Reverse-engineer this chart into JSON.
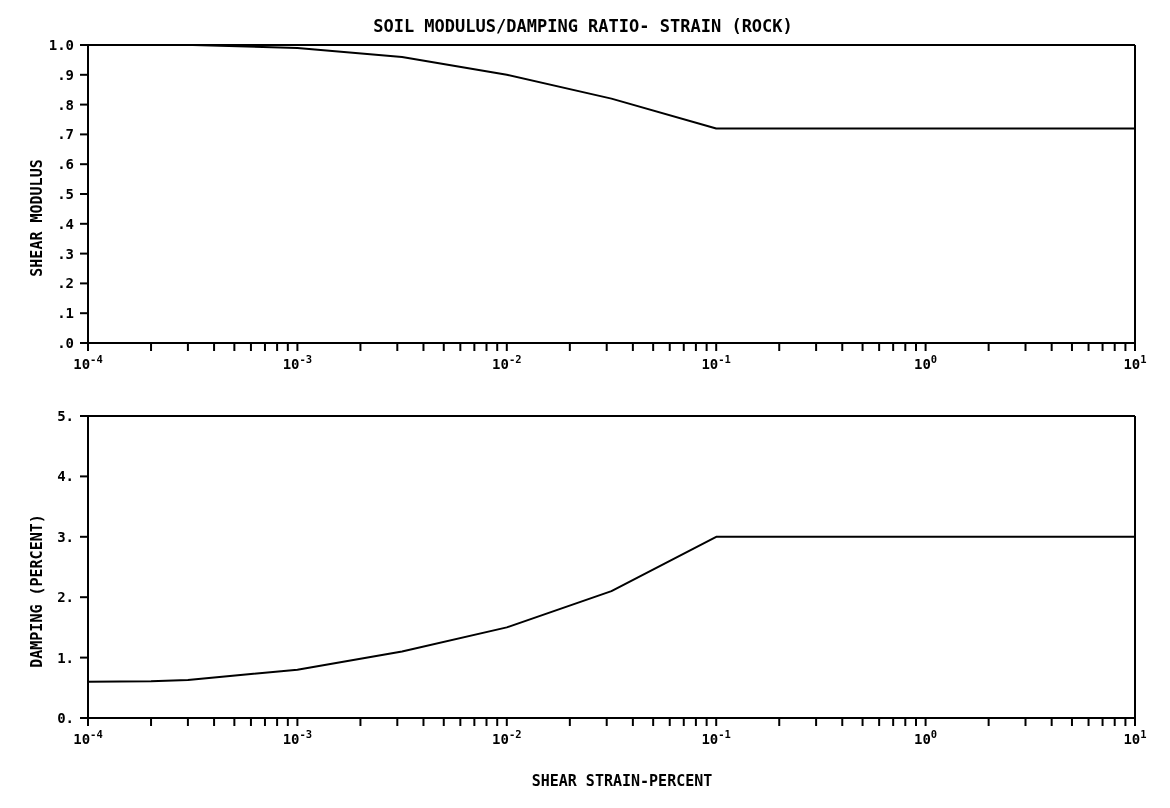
{
  "chart_data": [
    {
      "type": "line",
      "title": "SOIL MODULUS/DAMPING RATIO- STRAIN (ROCK)",
      "ylabel": "SHEAR MODULUS",
      "log": "x",
      "marker": "none",
      "line_style": "solid",
      "series": [
        {
          "color": "#000000",
          "x": [
            0.0001,
            0.000316,
            0.001,
            0.00316,
            0.01,
            0.0316,
            0.1,
            10
          ],
          "values": [
            1.0,
            1.0,
            0.99,
            0.96,
            0.9,
            0.82,
            0.72,
            0.72
          ]
        }
      ],
      "xlim": [
        0.0001,
        10
      ],
      "xticks": [
        {
          "value": 0.0001,
          "label": "10$^{-4}$"
        },
        {
          "value": 0.0002,
          "label": null
        },
        {
          "value": 0.0003,
          "label": null
        },
        {
          "value": 0.0004,
          "label": null
        },
        {
          "value": 0.0005,
          "label": null
        },
        {
          "value": 0.0006,
          "label": null
        },
        {
          "value": 0.0007,
          "label": null
        },
        {
          "value": 0.0008,
          "label": null
        },
        {
          "value": 0.0009,
          "label": null
        },
        {
          "value": 0.001,
          "label": "10$^{-3}$"
        },
        {
          "value": 0.002,
          "label": null
        },
        {
          "value": 0.003,
          "label": null
        },
        {
          "value": 0.004,
          "label": null
        },
        {
          "value": 0.005,
          "label": null
        },
        {
          "value": 0.006,
          "label": null
        },
        {
          "value": 0.007,
          "label": null
        },
        {
          "value": 0.008,
          "label": null
        },
        {
          "value": 0.009,
          "label": null
        },
        {
          "value": 0.01,
          "label": "10$^{-2}$"
        },
        {
          "value": 0.02,
          "label": null
        },
        {
          "value": 0.03,
          "label": null
        },
        {
          "value": 0.04,
          "label": null
        },
        {
          "value": 0.05,
          "label": null
        },
        {
          "value": 0.06,
          "label": null
        },
        {
          "value": 0.07,
          "label": null
        },
        {
          "value": 0.08,
          "label": null
        },
        {
          "value": 0.09,
          "label": null
        },
        {
          "value": 0.1,
          "label": "10$^{-1}$"
        },
        {
          "value": 0.2,
          "label": null
        },
        {
          "value": 0.3,
          "label": null
        },
        {
          "value": 0.4,
          "label": null
        },
        {
          "value": 0.5,
          "label": null
        },
        {
          "value": 0.6,
          "label": null
        },
        {
          "value": 0.7,
          "label": null
        },
        {
          "value": 0.8,
          "label": null
        },
        {
          "value": 0.9,
          "label": null
        },
        {
          "value": 1,
          "label": "10$^{0}$"
        },
        {
          "value": 2,
          "label": null
        },
        {
          "value": 3,
          "label": null
        },
        {
          "value": 4,
          "label": null
        },
        {
          "value": 5,
          "label": null
        },
        {
          "value": 6,
          "label": null
        },
        {
          "value": 7,
          "label": null
        },
        {
          "value": 8,
          "label": null
        },
        {
          "value": 9,
          "label": null
        },
        {
          "value": 10,
          "label": "10$^{1}$"
        }
      ],
      "ylim": [
        0,
        1
      ],
      "yticks": [
        {
          "value": 0,
          "label": ".0"
        },
        {
          "value": 0.1,
          "label": ".1"
        },
        {
          "value": 0.2,
          "label": ".2"
        },
        {
          "value": 0.3,
          "label": ".3"
        },
        {
          "value": 0.4,
          "label": ".4"
        },
        {
          "value": 0.5,
          "label": ".5"
        },
        {
          "value": 0.6,
          "label": ".6"
        },
        {
          "value": 0.7,
          "label": ".7"
        },
        {
          "value": 0.8,
          "label": ".8"
        },
        {
          "value": 0.9,
          "label": ".9"
        },
        {
          "value": 1,
          "label": "1.0"
        }
      ]
    },
    {
      "type": "line",
      "xlabel": "SHEAR STRAIN-PERCENT",
      "ylabel": "DAMPING (PERCENT)",
      "log": "x",
      "marker": "none",
      "line_style": "solid",
      "series": [
        {
          "color": "#000000",
          "x": [
            0.0001,
            0.0002,
            0.0003,
            0.0006,
            0.001,
            0.00316,
            0.01,
            0.0316,
            0.1,
            10
          ],
          "values": [
            0.6,
            0.61,
            0.63,
            0.73,
            0.8,
            1.1,
            1.5,
            2.1,
            3.0,
            3.0
          ]
        }
      ],
      "xlim": [
        0.0001,
        10
      ],
      "xticks": [
        {
          "value": 0.0001,
          "label": "10$^{-4}$"
        },
        {
          "value": 0.0002,
          "label": null
        },
        {
          "value": 0.0003,
          "label": null
        },
        {
          "value": 0.0004,
          "label": null
        },
        {
          "value": 0.0005,
          "label": null
        },
        {
          "value": 0.0006,
          "label": null
        },
        {
          "value": 0.0007,
          "label": null
        },
        {
          "value": 0.0008,
          "label": null
        },
        {
          "value": 0.0009,
          "label": null
        },
        {
          "value": 0.001,
          "label": "10$^{-3}$"
        },
        {
          "value": 0.002,
          "label": null
        },
        {
          "value": 0.003,
          "label": null
        },
        {
          "value": 0.004,
          "label": null
        },
        {
          "value": 0.005,
          "label": null
        },
        {
          "value": 0.006,
          "label": null
        },
        {
          "value": 0.007,
          "label": null
        },
        {
          "value": 0.008,
          "label": null
        },
        {
          "value": 0.009,
          "label": null
        },
        {
          "value": 0.01,
          "label": "10$^{-2}$"
        },
        {
          "value": 0.02,
          "label": null
        },
        {
          "value": 0.03,
          "label": null
        },
        {
          "value": 0.04,
          "label": null
        },
        {
          "value": 0.05,
          "label": null
        },
        {
          "value": 0.06,
          "label": null
        },
        {
          "value": 0.07,
          "label": null
        },
        {
          "value": 0.08,
          "label": null
        },
        {
          "value": 0.09,
          "label": null
        },
        {
          "value": 0.1,
          "label": "10$^{-1}$"
        },
        {
          "value": 0.2,
          "label": null
        },
        {
          "value": 0.3,
          "label": null
        },
        {
          "value": 0.4,
          "label": null
        },
        {
          "value": 0.5,
          "label": null
        },
        {
          "value": 0.6,
          "label": null
        },
        {
          "value": 0.7,
          "label": null
        },
        {
          "value": 0.8,
          "label": null
        },
        {
          "value": 0.9,
          "label": null
        },
        {
          "value": 1,
          "label": "10$^{0}$"
        },
        {
          "value": 2,
          "label": null
        },
        {
          "value": 3,
          "label": null
        },
        {
          "value": 4,
          "label": null
        },
        {
          "value": 5,
          "label": null
        },
        {
          "value": 6,
          "label": null
        },
        {
          "value": 7,
          "label": null
        },
        {
          "value": 8,
          "label": null
        },
        {
          "value": 9,
          "label": null
        },
        {
          "value": 10,
          "label": "10$^{1}$"
        }
      ],
      "ylim": [
        0,
        5
      ],
      "yticks": [
        {
          "value": 0,
          "label": "0."
        },
        {
          "value": 1,
          "label": "1."
        },
        {
          "value": 2,
          "label": "2."
        },
        {
          "value": 3,
          "label": "3."
        },
        {
          "value": 4,
          "label": "4."
        },
        {
          "value": 5,
          "label": "5."
        }
      ]
    }
  ]
}
